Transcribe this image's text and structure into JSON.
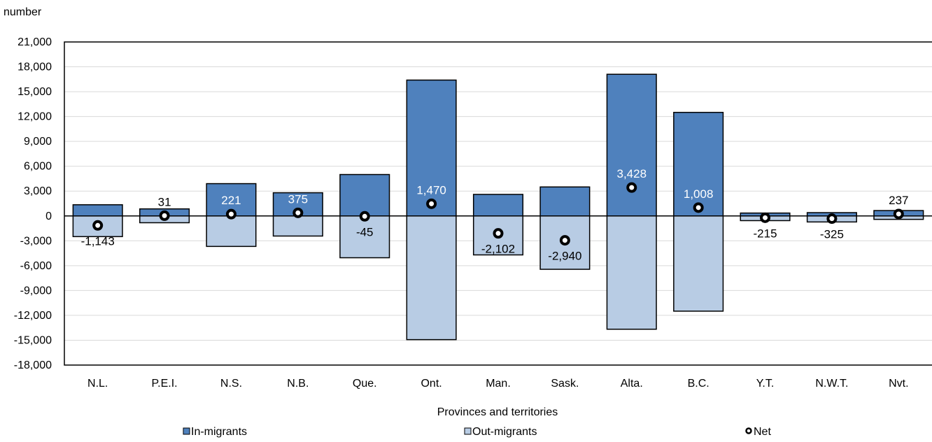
{
  "chart_data": {
    "type": "bar",
    "title": "",
    "ylabel": "number",
    "xlabel": "Provinces and territories",
    "ylim": [
      -18000,
      21000
    ],
    "ytick_step": 3000,
    "grid": true,
    "legend_position": "bottom",
    "categories": [
      "N.L.",
      "P.E.I.",
      "N.S.",
      "N.B.",
      "Que.",
      "Ont.",
      "Man.",
      "Sask.",
      "Alta.",
      "B.C.",
      "Y.T.",
      "N.W.T.",
      "Nvt."
    ],
    "series": [
      {
        "name": "In-migrants",
        "type": "bar",
        "color": "#4f81bd",
        "values": [
          1350,
          850,
          3900,
          2800,
          5000,
          16400,
          2600,
          3500,
          17100,
          12500,
          350,
          400,
          650
        ]
      },
      {
        "name": "Out-migrants",
        "type": "bar",
        "color": "#b8cce4",
        "values": [
          -2493,
          -819,
          -3679,
          -2425,
          -5045,
          -14930,
          -4702,
          -6440,
          -13672,
          -11492,
          -565,
          -725,
          -413
        ]
      },
      {
        "name": "Net",
        "type": "scatter",
        "color": "#000000",
        "values": [
          -1143,
          31,
          221,
          375,
          -45,
          1470,
          -2102,
          -2940,
          3428,
          1008,
          -215,
          -325,
          237
        ],
        "labels": [
          "-1,143",
          "31",
          "221",
          "375",
          "-45",
          "1,470",
          "-2,102",
          "-2,940",
          "3,428",
          "1,008",
          "-215",
          "-325",
          "237"
        ],
        "label_color": [
          "#000000",
          "#000000",
          "#ffffff",
          "#ffffff",
          "#000000",
          "#ffffff",
          "#000000",
          "#000000",
          "#ffffff",
          "#ffffff",
          "#000000",
          "#000000",
          "#000000"
        ]
      }
    ]
  }
}
